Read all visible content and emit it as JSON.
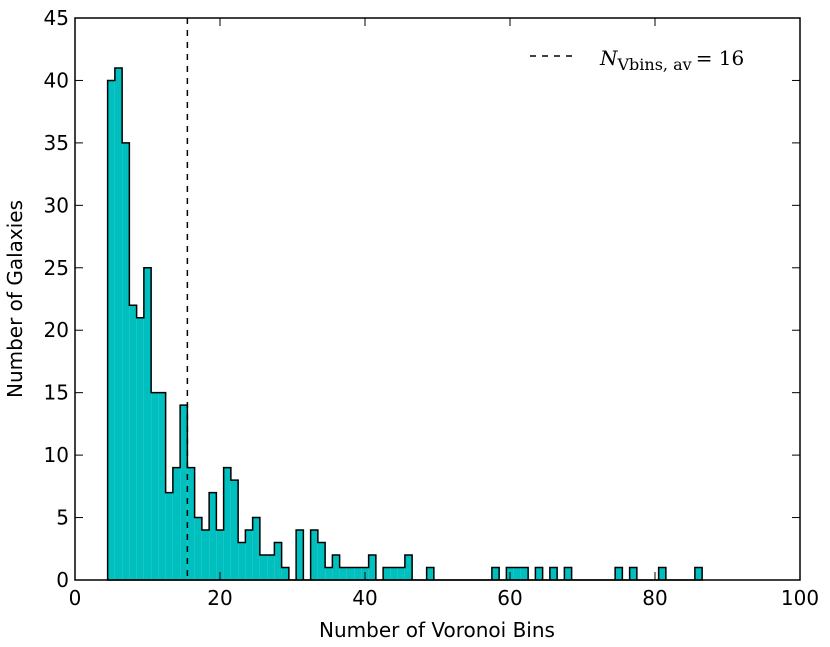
{
  "chart_data": {
    "type": "histogram",
    "x_label": "Number of Voronoi Bins",
    "y_label": "Number of Galaxies",
    "color": "#00bfbf",
    "edge_color": "#000000",
    "bins": [
      4.5,
      5.5,
      6.5,
      7.5,
      8.5,
      9.5,
      10.5,
      11.5,
      12.5,
      13.5,
      14.5,
      15.5,
      16.5,
      17.5,
      18.5,
      19.5,
      20.5,
      21.5,
      22.5,
      23.5,
      24.5,
      25.5,
      26.5,
      27.5,
      28.5,
      29.5,
      30.5,
      31.5,
      32.5,
      33.5,
      34.5,
      35.5,
      36.5,
      37.5,
      38.5,
      39.5,
      40.5,
      41.5,
      42.5,
      43.5,
      44.5,
      45.5,
      46.5,
      47.5,
      48.5,
      49.5,
      50.5,
      51.5,
      52.5,
      53.5,
      54.5,
      55.5,
      56.5,
      57.5,
      58.5,
      59.5,
      60.5,
      61.5,
      62.5,
      63.5,
      64.5,
      65.5,
      66.5,
      67.5,
      68.5,
      69.5,
      70.5,
      71.5,
      72.5,
      73.5,
      74.5,
      75.5,
      76.5,
      77.5,
      78.5,
      79.5,
      80.5,
      81.5,
      82.5,
      83.5,
      84.5,
      85.5,
      86.5
    ],
    "values": [
      40,
      41,
      35,
      22,
      21,
      25,
      15,
      15,
      7,
      9,
      14,
      9,
      5,
      4,
      7,
      4,
      9,
      8,
      3,
      4,
      5,
      2,
      2,
      3,
      1,
      0,
      4,
      0,
      4,
      3,
      1,
      2,
      1,
      1,
      1,
      1,
      2,
      0,
      1,
      1,
      1,
      2,
      0,
      0,
      1,
      0,
      0,
      0,
      0,
      0,
      0,
      0,
      0,
      1,
      0,
      1,
      1,
      1,
      0,
      1,
      0,
      1,
      0,
      1,
      0,
      0,
      0,
      0,
      0,
      0,
      1,
      0,
      1,
      0,
      0,
      0,
      1,
      0,
      0,
      0,
      0,
      1
    ],
    "vline": {
      "x": 15.5,
      "color": "#000000",
      "style": "dashed"
    },
    "legend": {
      "symbol": "N",
      "subscript": "Vbins, av",
      "rest": "= 16",
      "position": "upper right"
    },
    "xlim": [
      0,
      100
    ],
    "ylim": [
      0,
      45
    ],
    "xticks": [
      0,
      20,
      40,
      60,
      80,
      100
    ],
    "yticks": [
      0,
      5,
      10,
      15,
      20,
      25,
      30,
      35,
      40,
      45
    ]
  }
}
